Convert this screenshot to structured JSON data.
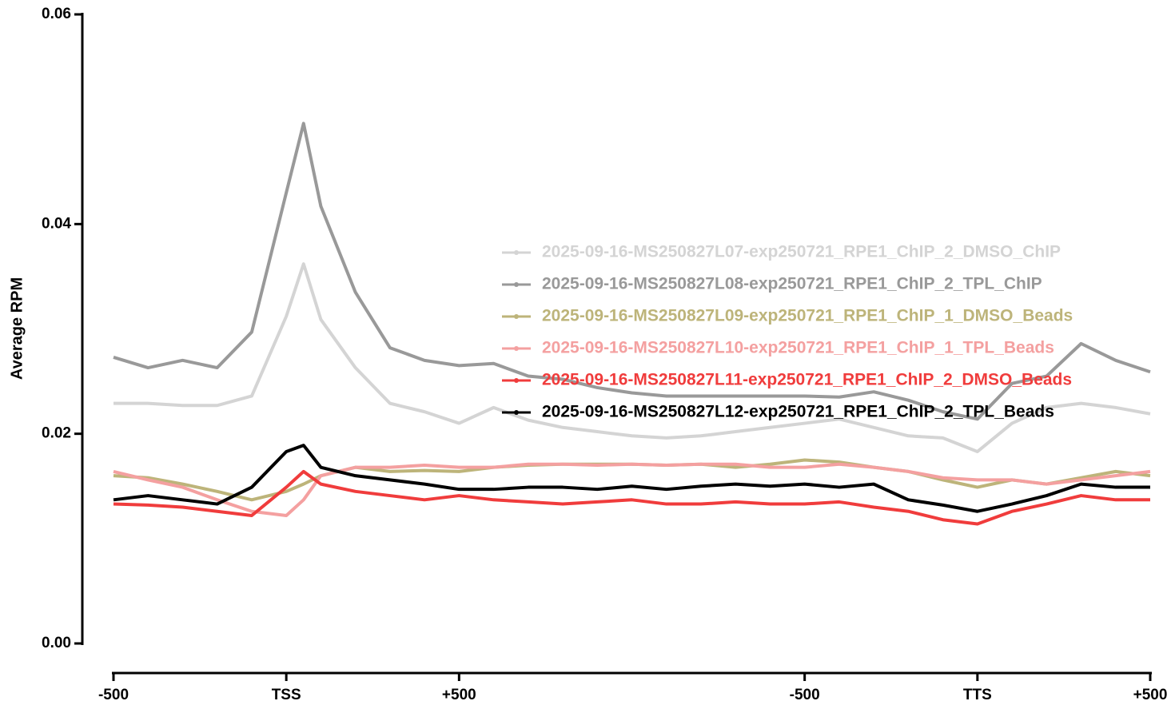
{
  "chart_data": {
    "type": "line",
    "ylabel": "Average RPM",
    "x": [
      0,
      100,
      200,
      300,
      400,
      500,
      550,
      600,
      700,
      800,
      900,
      1000,
      1100,
      1200,
      1300,
      1400,
      1500,
      1600,
      1700,
      1800,
      1900,
      2000,
      2100,
      2200,
      2300,
      2400,
      2500,
      2600,
      2700,
      2800,
      2900,
      3000
    ],
    "xlim": [
      0,
      3000
    ],
    "xticks": [
      {
        "value": 0,
        "label": "-500"
      },
      {
        "value": 500,
        "label": "TSS"
      },
      {
        "value": 1000,
        "label": "+500"
      },
      {
        "value": 2000,
        "label": "-500"
      },
      {
        "value": 2500,
        "label": "TTS"
      },
      {
        "value": 3000,
        "label": "+500"
      }
    ],
    "ylim": [
      0,
      0.06
    ],
    "yticks": [
      {
        "value": 0,
        "label": "0.00"
      },
      {
        "value": 0.02,
        "label": "0.02"
      },
      {
        "value": 0.04,
        "label": "0.04"
      },
      {
        "value": 0.06,
        "label": "0.06"
      }
    ],
    "grid": false,
    "legend_position": "right",
    "series": [
      {
        "name": "2025-09-16-MS250827L07-exp250721_RPE1_ChIP_2_DMSO_ChIP",
        "color": "#d4d4d4",
        "values": [
          0.0229,
          0.0229,
          0.0227,
          0.0227,
          0.0236,
          0.0312,
          0.0362,
          0.0309,
          0.0263,
          0.0229,
          0.0221,
          0.021,
          0.0225,
          0.0213,
          0.0206,
          0.0202,
          0.0198,
          0.0196,
          0.0198,
          0.0202,
          0.0206,
          0.021,
          0.0214,
          0.0206,
          0.0198,
          0.0196,
          0.0183,
          0.021,
          0.0225,
          0.0229,
          0.0225,
          0.0219
        ]
      },
      {
        "name": "2025-09-16-MS250827L08-exp250721_RPE1_ChIP_2_TPL_ChIP",
        "color": "#999999",
        "values": [
          0.0273,
          0.0263,
          0.027,
          0.0263,
          0.0297,
          0.043,
          0.0496,
          0.0417,
          0.0335,
          0.0282,
          0.027,
          0.0265,
          0.0267,
          0.0255,
          0.0252,
          0.0244,
          0.0239,
          0.0236,
          0.0236,
          0.0236,
          0.0236,
          0.0236,
          0.0235,
          0.024,
          0.0232,
          0.0221,
          0.0214,
          0.0248,
          0.0255,
          0.0286,
          0.027,
          0.0259
        ]
      },
      {
        "name": "2025-09-16-MS250827L09-exp250721_RPE1_ChIP_1_DMSO_Beads",
        "color": "#bdb47a",
        "values": [
          0.016,
          0.0158,
          0.0152,
          0.0145,
          0.0137,
          0.0145,
          0.0152,
          0.016,
          0.0168,
          0.0164,
          0.0165,
          0.0164,
          0.0168,
          0.017,
          0.0171,
          0.0171,
          0.0171,
          0.017,
          0.0171,
          0.0168,
          0.0171,
          0.0175,
          0.0173,
          0.0168,
          0.0164,
          0.0156,
          0.0149,
          0.0156,
          0.0152,
          0.0158,
          0.0164,
          0.016
        ]
      },
      {
        "name": "2025-09-16-MS250827L10-exp250721_RPE1_ChIP_1_TPL_Beads",
        "color": "#f4a0a0",
        "values": [
          0.0164,
          0.0156,
          0.0149,
          0.0137,
          0.0126,
          0.0122,
          0.0137,
          0.016,
          0.0168,
          0.0168,
          0.017,
          0.0168,
          0.0168,
          0.0171,
          0.0171,
          0.017,
          0.0171,
          0.017,
          0.0171,
          0.0171,
          0.0168,
          0.0168,
          0.0171,
          0.0168,
          0.0164,
          0.0158,
          0.0156,
          0.0156,
          0.0152,
          0.0156,
          0.016,
          0.0164
        ]
      },
      {
        "name": "2025-09-16-MS250827L11-exp250721_RPE1_ChIP_2_DMSO_Beads",
        "color": "#f03c3c",
        "values": [
          0.0133,
          0.0132,
          0.013,
          0.0126,
          0.0122,
          0.0149,
          0.0164,
          0.0152,
          0.0145,
          0.0141,
          0.0137,
          0.0141,
          0.0137,
          0.0135,
          0.0133,
          0.0135,
          0.0137,
          0.0133,
          0.0133,
          0.0135,
          0.0133,
          0.0133,
          0.0135,
          0.013,
          0.0126,
          0.0118,
          0.0114,
          0.0126,
          0.0133,
          0.0141,
          0.0137,
          0.0137
        ]
      },
      {
        "name": "2025-09-16-MS250827L12-exp250721_RPE1_ChIP_2_TPL_Beads",
        "color": "#000000",
        "values": [
          0.0137,
          0.0141,
          0.0137,
          0.0133,
          0.0149,
          0.0183,
          0.0189,
          0.0168,
          0.016,
          0.0156,
          0.0152,
          0.0147,
          0.0147,
          0.0149,
          0.0149,
          0.0147,
          0.015,
          0.0147,
          0.015,
          0.0152,
          0.015,
          0.0152,
          0.0149,
          0.0152,
          0.0137,
          0.0132,
          0.0126,
          0.0133,
          0.0141,
          0.0152,
          0.0149,
          0.0149
        ]
      }
    ]
  }
}
